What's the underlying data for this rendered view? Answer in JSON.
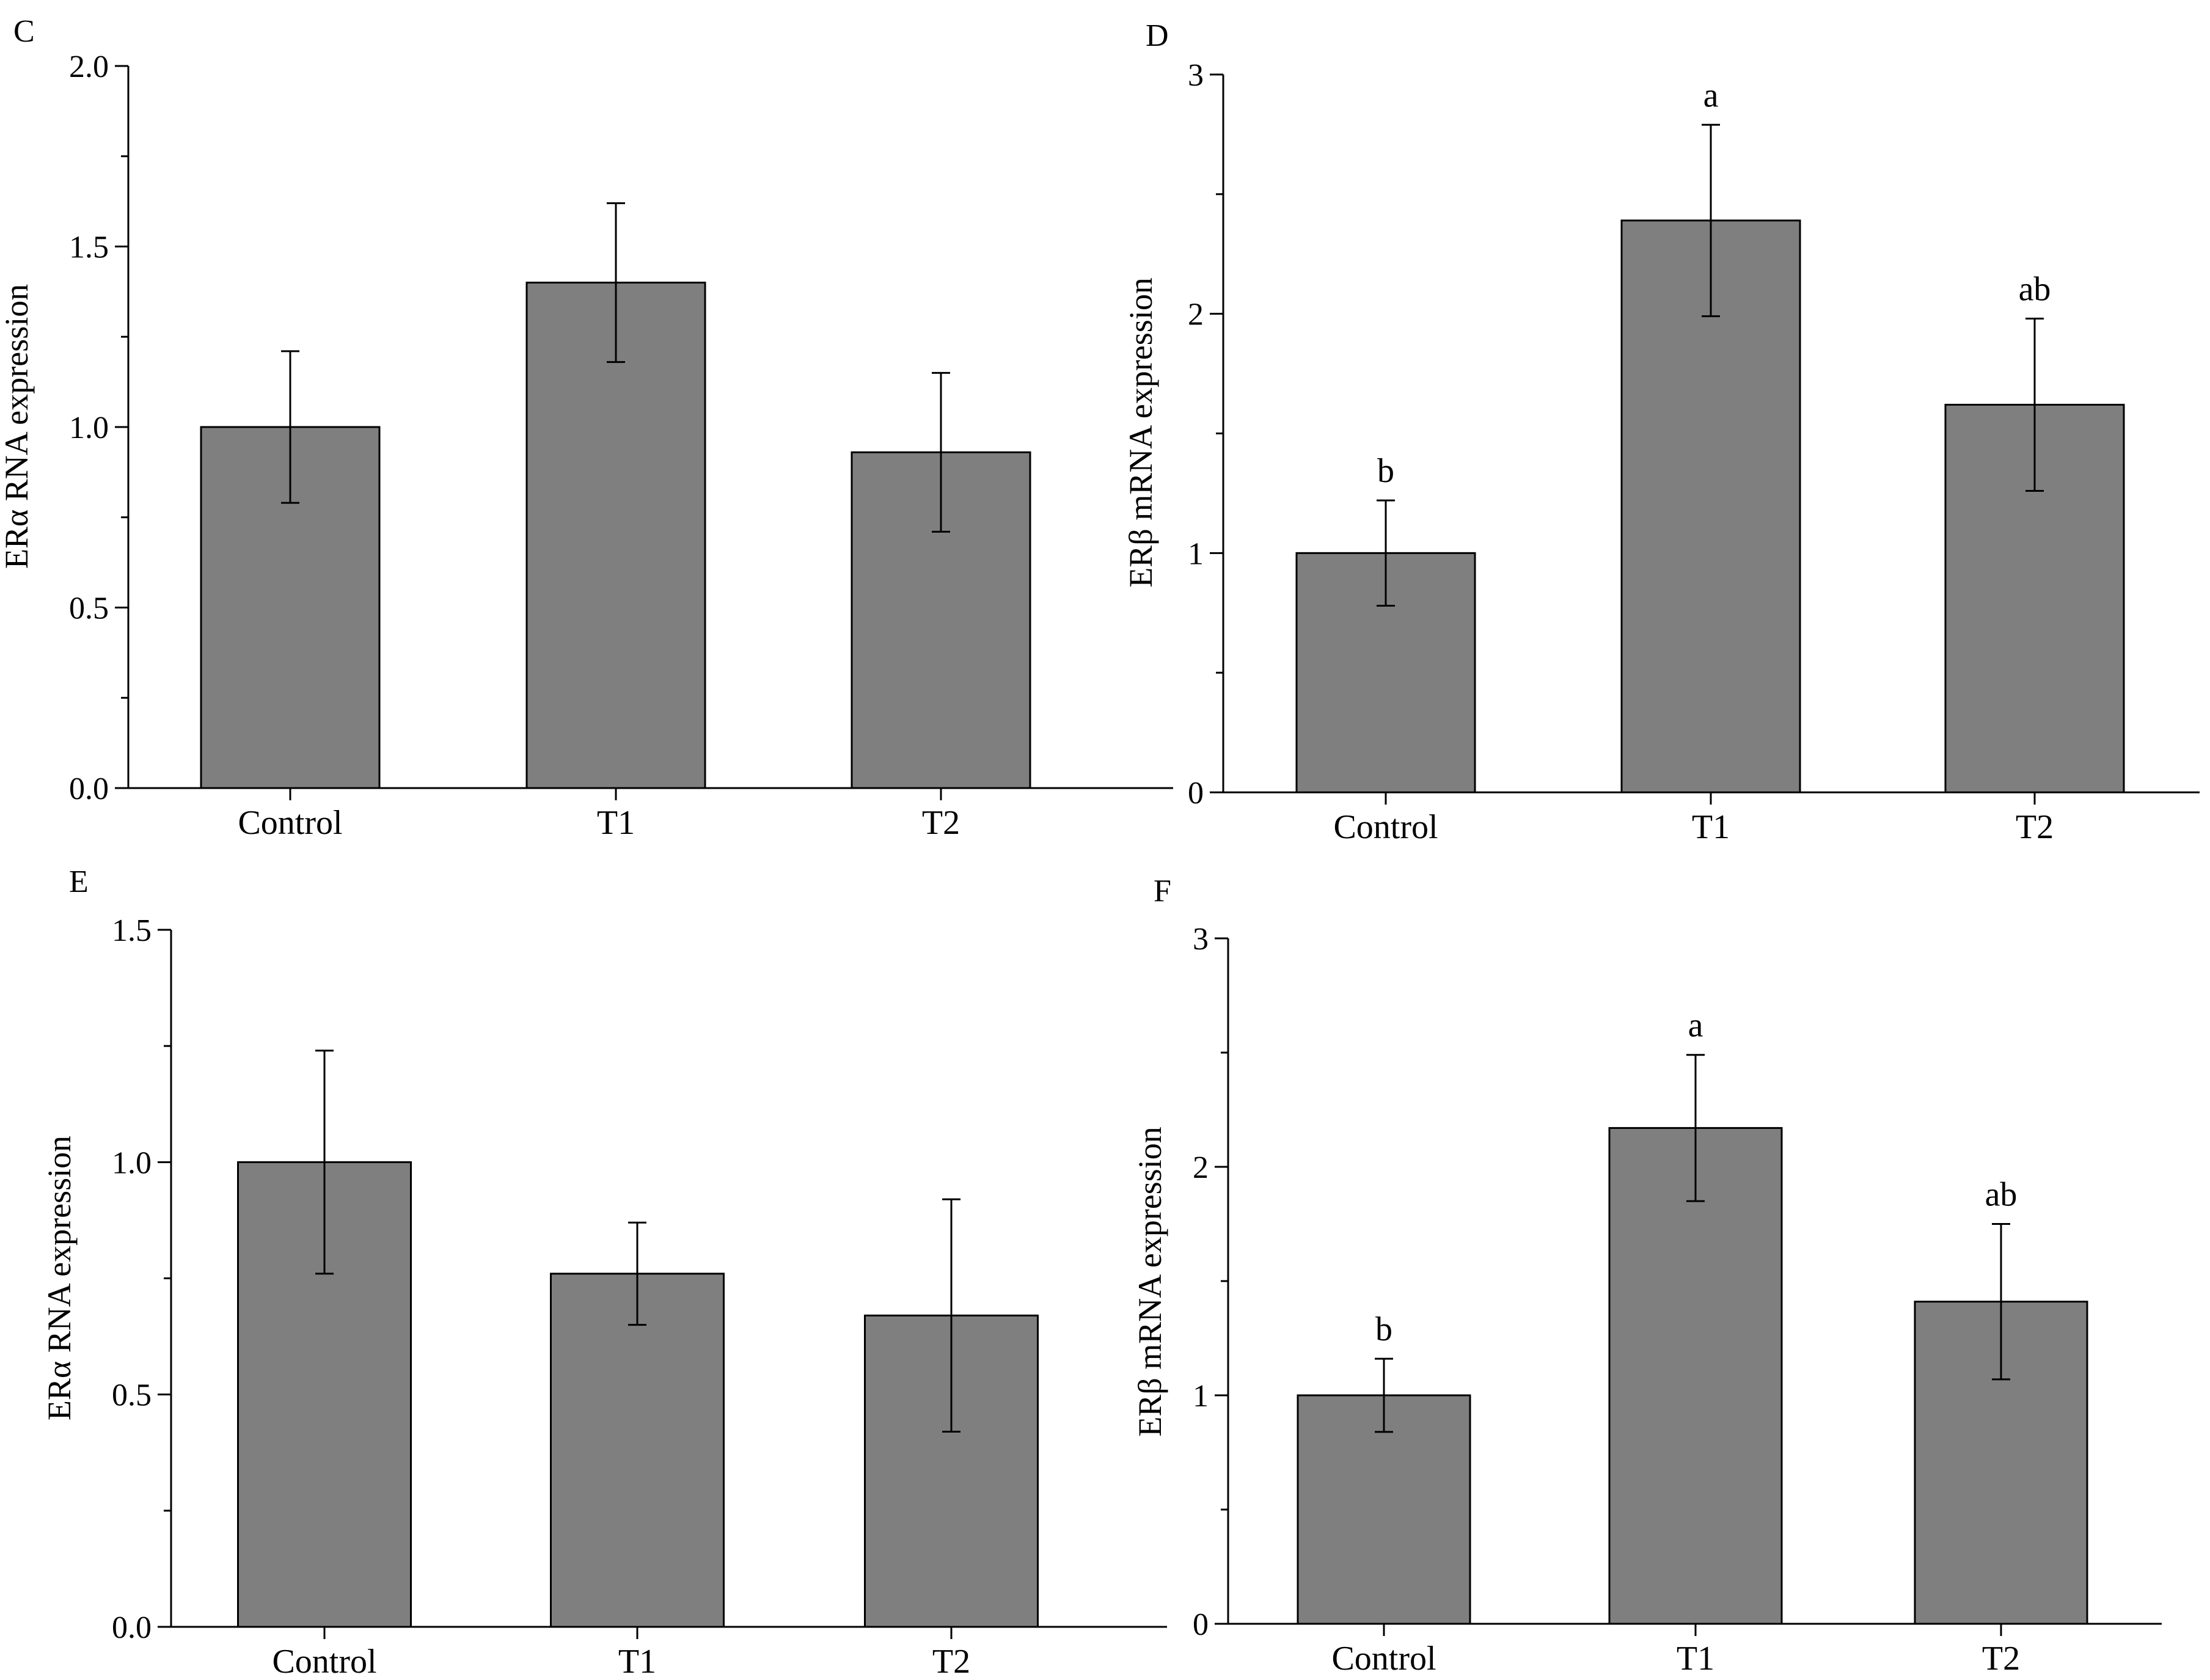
{
  "figure": {
    "colors": {
      "bar_fill": "#7f7f7f",
      "bar_stroke": "#000000",
      "axis": "#000000",
      "background": "#ffffff"
    }
  },
  "chart_data": [
    {
      "panel": "C",
      "type": "bar",
      "title": "",
      "xlabel": "",
      "ylabel": "ERα RNA expression",
      "categories": [
        "Control",
        "T1",
        "T2"
      ],
      "values": [
        1.0,
        1.4,
        0.93
      ],
      "errors": [
        0.21,
        0.22,
        0.22
      ],
      "significance": [
        "",
        "",
        ""
      ],
      "ylim": [
        0,
        2.0
      ],
      "yticks": [
        0.0,
        0.5,
        1.0,
        1.5,
        2.0
      ],
      "ytick_labels": [
        "0.0",
        "0.5",
        "1.0",
        "1.5",
        "2.0"
      ],
      "minor_ticks": true,
      "grid": false,
      "legend": "none"
    },
    {
      "panel": "D",
      "type": "bar",
      "title": "",
      "xlabel": "",
      "ylabel": "ERβ  mRNA expression",
      "categories": [
        "Control",
        "T1",
        "T2"
      ],
      "values": [
        1.0,
        2.39,
        1.62
      ],
      "errors": [
        0.22,
        0.4,
        0.36
      ],
      "significance": [
        "b",
        "a",
        "ab"
      ],
      "ylim": [
        0,
        3
      ],
      "yticks": [
        0,
        1,
        2,
        3
      ],
      "ytick_labels": [
        "0",
        "1",
        "2",
        "3"
      ],
      "minor_ticks": true,
      "grid": false,
      "legend": "none"
    },
    {
      "panel": "E",
      "type": "bar",
      "title": "",
      "xlabel": "",
      "ylabel": "ERα  RNA expression",
      "categories": [
        "Control",
        "T1",
        "T2"
      ],
      "values": [
        1.0,
        0.76,
        0.67
      ],
      "errors": [
        0.24,
        0.11,
        0.25
      ],
      "significance": [
        "",
        "",
        ""
      ],
      "ylim": [
        0,
        1.5
      ],
      "yticks": [
        0.0,
        0.5,
        1.0,
        1.5
      ],
      "ytick_labels": [
        "0.0",
        "0.5",
        "1.0",
        "1.5"
      ],
      "minor_ticks": true,
      "grid": false,
      "legend": "none"
    },
    {
      "panel": "F",
      "type": "bar",
      "title": "",
      "xlabel": "",
      "ylabel": "ERβ  mRNA expression",
      "categories": [
        "Control",
        "T1",
        "T2"
      ],
      "values": [
        1.0,
        2.17,
        1.41
      ],
      "errors": [
        0.16,
        0.32,
        0.34
      ],
      "significance": [
        "b",
        "a",
        "ab"
      ],
      "ylim": [
        0,
        3
      ],
      "yticks": [
        0,
        1,
        2,
        3
      ],
      "ytick_labels": [
        "0",
        "1",
        "2",
        "3"
      ],
      "minor_ticks": true,
      "grid": false,
      "legend": "none"
    }
  ]
}
